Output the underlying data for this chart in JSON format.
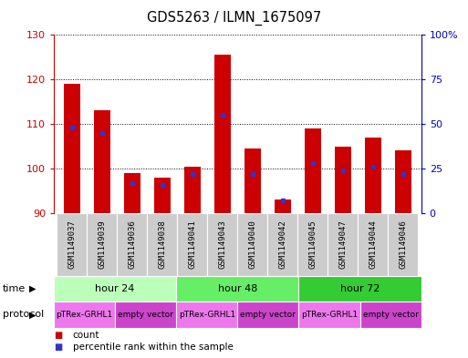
{
  "title": "GDS5263 / ILMN_1675097",
  "samples": [
    "GSM1149037",
    "GSM1149039",
    "GSM1149036",
    "GSM1149038",
    "GSM1149041",
    "GSM1149043",
    "GSM1149040",
    "GSM1149042",
    "GSM1149045",
    "GSM1149047",
    "GSM1149044",
    "GSM1149046"
  ],
  "count_values": [
    119,
    113,
    99,
    98,
    100.5,
    125.5,
    104.5,
    93,
    109,
    105,
    107,
    104
  ],
  "percentile_values": [
    48,
    45,
    17,
    16,
    22,
    55,
    22,
    7,
    28,
    24,
    26,
    22
  ],
  "ylim_left": [
    90,
    130
  ],
  "ylim_right": [
    0,
    100
  ],
  "yticks_left": [
    90,
    100,
    110,
    120,
    130
  ],
  "yticks_right": [
    0,
    25,
    50,
    75,
    100
  ],
  "bar_color": "#cc0000",
  "percentile_color": "#3333cc",
  "bar_baseline": 90,
  "time_groups": [
    {
      "label": "hour 24",
      "start": 0,
      "end": 4,
      "color": "#bbffbb"
    },
    {
      "label": "hour 48",
      "start": 4,
      "end": 8,
      "color": "#66ee66"
    },
    {
      "label": "hour 72",
      "start": 8,
      "end": 12,
      "color": "#33cc33"
    }
  ],
  "protocol_groups": [
    {
      "label": "pTRex-GRHL1",
      "start": 0,
      "end": 2,
      "color": "#ee77ee"
    },
    {
      "label": "empty vector",
      "start": 2,
      "end": 4,
      "color": "#cc44cc"
    },
    {
      "label": "pTRex-GRHL1",
      "start": 4,
      "end": 6,
      "color": "#ee77ee"
    },
    {
      "label": "empty vector",
      "start": 6,
      "end": 8,
      "color": "#cc44cc"
    },
    {
      "label": "pTRex-GRHL1",
      "start": 8,
      "end": 10,
      "color": "#ee77ee"
    },
    {
      "label": "empty vector",
      "start": 10,
      "end": 12,
      "color": "#cc44cc"
    }
  ],
  "time_label": "time",
  "protocol_label": "protocol",
  "bg_color": "#ffffff",
  "left_axis_color": "#cc0000",
  "right_axis_color": "#0000cc",
  "sample_bg_color": "#cccccc",
  "fig_width": 5.13,
  "fig_height": 3.93,
  "dpi": 100
}
